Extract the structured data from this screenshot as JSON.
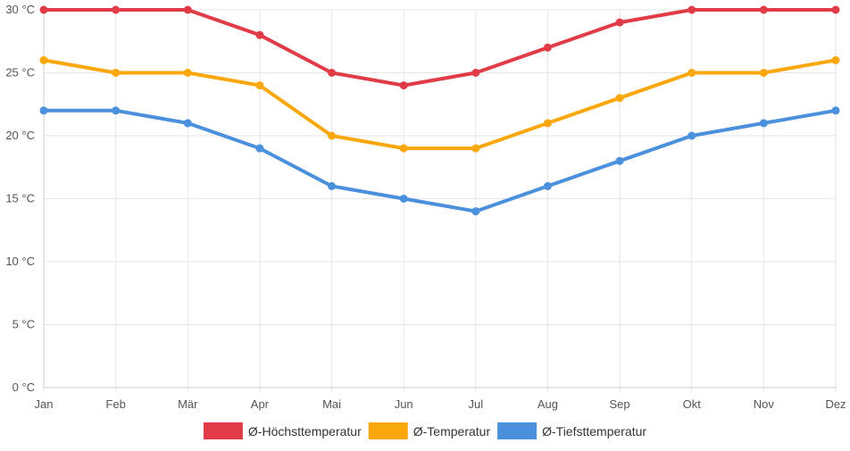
{
  "chart_data": {
    "type": "line",
    "title": "",
    "xlabel": "",
    "ylabel": "",
    "categories": [
      "Jan",
      "Feb",
      "Mär",
      "Apr",
      "Mai",
      "Jun",
      "Jul",
      "Aug",
      "Sep",
      "Okt",
      "Nov",
      "Dez"
    ],
    "y_unit": "°C",
    "ylim": [
      0,
      30
    ],
    "y_ticks": [
      {
        "value": 0,
        "label": "0 °C"
      },
      {
        "value": 5,
        "label": "5 °C"
      },
      {
        "value": 10,
        "label": "10 °C"
      },
      {
        "value": 15,
        "label": "15 °C"
      },
      {
        "value": 20,
        "label": "20 °C"
      },
      {
        "value": 25,
        "label": "25 °C"
      },
      {
        "value": 30,
        "label": "30 °C"
      }
    ],
    "grid": true,
    "legend_position": "bottom",
    "series": [
      {
        "name": "Ø-Höchsttemperatur",
        "color": "#e03b46",
        "values": [
          30,
          30,
          30,
          28,
          25,
          24,
          25,
          27,
          29,
          30,
          30,
          30
        ]
      },
      {
        "name": "Ø-Temperatur",
        "color": "#f9a70a",
        "values": [
          26,
          25,
          25,
          24,
          20,
          19,
          19,
          21,
          23,
          25,
          25,
          26
        ]
      },
      {
        "name": "Ø-Tiefsttemperatur",
        "color": "#4a90dd",
        "values": [
          22,
          22,
          21,
          19,
          16,
          15,
          14,
          16,
          18,
          20,
          21,
          22
        ]
      }
    ]
  }
}
